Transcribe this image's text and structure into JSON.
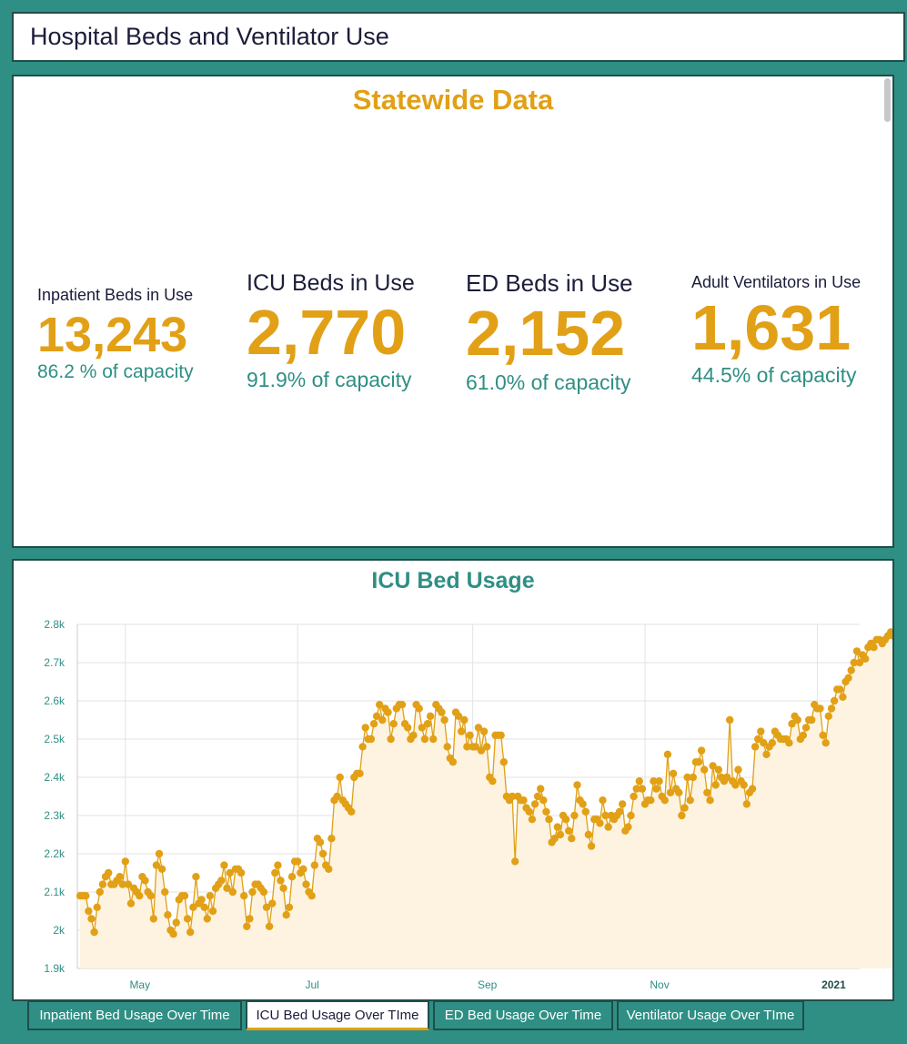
{
  "header": {
    "title": "Hospital Beds and Ventilator Use"
  },
  "stats_panel": {
    "title": "Statewide Data",
    "stats": [
      {
        "label": "Inpatient Beds in Use",
        "value": "13,243",
        "pct": "86.2 % of capacity"
      },
      {
        "label": "ICU Beds in Use",
        "value": "2,770",
        "pct": "91.9% of capacity"
      },
      {
        "label": "ED Beds in Use",
        "value": "2,152",
        "pct": "61.0% of capacity"
      },
      {
        "label": "Adult Ventilators in Use",
        "value": "1,631",
        "pct": "44.5% of capacity"
      }
    ]
  },
  "chart_panel": {
    "title": "ICU Bed Usage"
  },
  "tabs": [
    {
      "label": "Inpatient Bed Usage Over Time",
      "active": false
    },
    {
      "label": "ICU Bed Usage Over TIme",
      "active": true
    },
    {
      "label": "ED Bed Usage Over Time",
      "active": false
    },
    {
      "label": "Ventilator Usage Over TIme",
      "active": false
    }
  ],
  "colors": {
    "accent": "#e1a016",
    "teal": "#2f8f84",
    "navy": "#1b1d3a",
    "area_fill": "#fdf3e0"
  },
  "chart_data": {
    "type": "area",
    "title": "ICU Bed Usage",
    "xlabel": "",
    "ylabel": "",
    "x_tick_labels": [
      "May",
      "Jul",
      "Sep",
      "Nov",
      "2021"
    ],
    "y_tick_labels": [
      "1.9k",
      "2k",
      "2.1k",
      "2.2k",
      "2.3k",
      "2.4k",
      "2.5k",
      "2.6k",
      "2.7k",
      "2.8k"
    ],
    "ylim": [
      1900,
      2800
    ],
    "xlim": [
      "2020-04-14",
      "2021-01-16"
    ],
    "x_start": "2020-04-15",
    "x_interval": "1 day",
    "grid": true,
    "series": [
      {
        "values": [
          2090,
          2090,
          2090,
          2050,
          2030,
          1995,
          2060,
          2100,
          2120,
          2140,
          2150,
          2120,
          2120,
          2130,
          2140,
          2120,
          2180,
          2120,
          2070,
          2110,
          2100,
          2090,
          2140,
          2130,
          2100,
          2090,
          2030,
          2170,
          2200,
          2160,
          2100,
          2040,
          2000,
          1990,
          2020,
          2080,
          2090,
          2090,
          2030,
          1995,
          2060,
          2140,
          2070,
          2080,
          2060,
          2030,
          2090,
          2050,
          2110,
          2120,
          2130,
          2170,
          2110,
          2150,
          2100,
          2160,
          2160,
          2150,
          2090,
          2010,
          2030,
          2100,
          2120,
          2120,
          2110,
          2100,
          2060,
          2010,
          2070,
          2150,
          2170,
          2130,
          2110,
          2040,
          2060,
          2140,
          2180,
          2180,
          2150,
          2160,
          2120,
          2100,
          2090,
          2170,
          2240,
          2230,
          2200,
          2170,
          2160,
          2240,
          2340,
          2350,
          2400,
          2340,
          2330,
          2320,
          2310,
          2400,
          2410,
          2410,
          2480,
          2530,
          2500,
          2500,
          2540,
          2560,
          2590,
          2550,
          2580,
          2570,
          2500,
          2540,
          2580,
          2590,
          2590,
          2540,
          2530,
          2500,
          2510,
          2590,
          2580,
          2530,
          2500,
          2540,
          2560,
          2500,
          2590,
          2580,
          2570,
          2550,
          2480,
          2450,
          2440,
          2570,
          2560,
          2520,
          2550,
          2480,
          2510,
          2480,
          2480,
          2530,
          2470,
          2520,
          2480,
          2400,
          2390,
          2510,
          2510,
          2510,
          2440,
          2350,
          2340,
          2350,
          2180,
          2350,
          2340,
          2340,
          2320,
          2310,
          2290,
          2330,
          2350,
          2370,
          2340,
          2310,
          2290,
          2230,
          2240,
          2270,
          2250,
          2300,
          2290,
          2260,
          2240,
          2300,
          2380,
          2340,
          2330,
          2310,
          2250,
          2220,
          2290,
          2290,
          2280,
          2340,
          2300,
          2270,
          2300,
          2290,
          2300,
          2310,
          2330,
          2260,
          2270,
          2300,
          2350,
          2370,
          2390,
          2370,
          2330,
          2340,
          2340,
          2390,
          2370,
          2390,
          2350,
          2340,
          2460,
          2360,
          2410,
          2370,
          2360,
          2300,
          2320,
          2400,
          2340,
          2400,
          2440,
          2440,
          2470,
          2420,
          2360,
          2340,
          2430,
          2380,
          2420,
          2400,
          2390,
          2400,
          2550,
          2390,
          2380,
          2420,
          2390,
          2380,
          2330,
          2360,
          2370,
          2480,
          2500,
          2520,
          2490,
          2460,
          2480,
          2490,
          2520,
          2510,
          2500,
          2500,
          2500,
          2490,
          2540,
          2560,
          2550,
          2500,
          2510,
          2530,
          2550,
          2550,
          2590,
          2580,
          2580,
          2510,
          2490,
          2560,
          2580,
          2600,
          2630,
          2630,
          2610,
          2650,
          2660,
          2680,
          2700,
          2730,
          2700,
          2720,
          2710,
          2740,
          2750,
          2740,
          2760,
          2760,
          2750,
          2760,
          2770,
          2780,
          2770,
          2770
        ]
      }
    ]
  }
}
